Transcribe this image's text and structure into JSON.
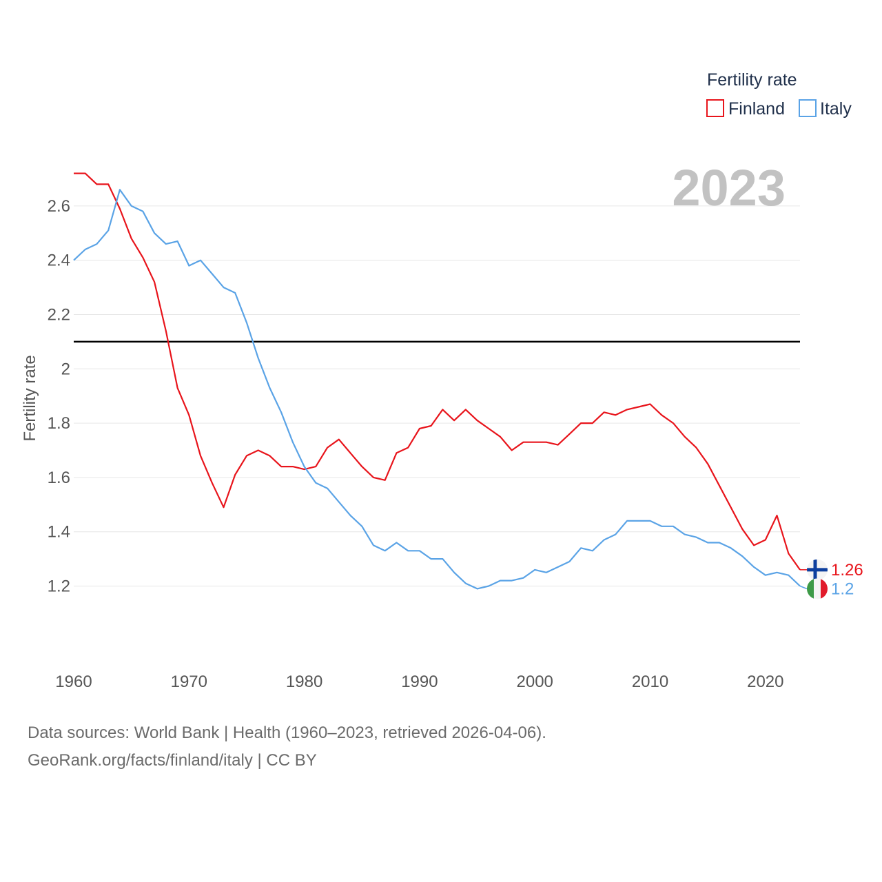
{
  "chart_data": {
    "type": "line",
    "title": "Fertility rate",
    "current_year": "2023",
    "xlabel": "",
    "ylabel": "Fertility rate",
    "xlim": [
      1960,
      2023
    ],
    "ylim": [
      0.95,
      2.78
    ],
    "x_ticks": [
      1960,
      1970,
      1980,
      1990,
      2000,
      2010,
      2020
    ],
    "y_ticks": [
      1.2,
      1.4,
      1.6,
      1.8,
      2,
      2.2,
      2.4,
      2.6
    ],
    "reference_line": {
      "y": 2.1,
      "color": "#000000"
    },
    "x": [
      1960,
      1961,
      1962,
      1963,
      1964,
      1965,
      1966,
      1967,
      1968,
      1969,
      1970,
      1971,
      1972,
      1973,
      1974,
      1975,
      1976,
      1977,
      1978,
      1979,
      1980,
      1981,
      1982,
      1983,
      1984,
      1985,
      1986,
      1987,
      1988,
      1989,
      1990,
      1991,
      1992,
      1993,
      1994,
      1995,
      1996,
      1997,
      1998,
      1999,
      2000,
      2001,
      2002,
      2003,
      2004,
      2005,
      2006,
      2007,
      2008,
      2009,
      2010,
      2011,
      2012,
      2013,
      2014,
      2015,
      2016,
      2017,
      2018,
      2019,
      2020,
      2021,
      2022,
      2023
    ],
    "series": [
      {
        "name": "Finland",
        "color": "#e8141b",
        "end_label": "1.26",
        "flag": "finland-flag",
        "values": [
          2.72,
          2.72,
          2.68,
          2.68,
          2.59,
          2.48,
          2.41,
          2.32,
          2.14,
          1.93,
          1.83,
          1.68,
          1.58,
          1.49,
          1.61,
          1.68,
          1.7,
          1.68,
          1.64,
          1.64,
          1.63,
          1.64,
          1.71,
          1.74,
          1.69,
          1.64,
          1.6,
          1.59,
          1.69,
          1.71,
          1.78,
          1.79,
          1.85,
          1.81,
          1.85,
          1.81,
          1.78,
          1.75,
          1.7,
          1.73,
          1.73,
          1.73,
          1.72,
          1.76,
          1.8,
          1.8,
          1.84,
          1.83,
          1.85,
          1.86,
          1.87,
          1.83,
          1.8,
          1.75,
          1.71,
          1.65,
          1.57,
          1.49,
          1.41,
          1.35,
          1.37,
          1.46,
          1.32,
          1.26
        ]
      },
      {
        "name": "Italy",
        "color": "#5aa3e6",
        "end_label": "1.2",
        "flag": "italy-flag",
        "values": [
          2.4,
          2.44,
          2.46,
          2.51,
          2.66,
          2.6,
          2.58,
          2.5,
          2.46,
          2.47,
          2.38,
          2.4,
          2.35,
          2.3,
          2.28,
          2.17,
          2.04,
          1.93,
          1.84,
          1.73,
          1.64,
          1.58,
          1.56,
          1.51,
          1.46,
          1.42,
          1.35,
          1.33,
          1.36,
          1.33,
          1.33,
          1.3,
          1.3,
          1.25,
          1.21,
          1.19,
          1.2,
          1.22,
          1.22,
          1.23,
          1.26,
          1.25,
          1.27,
          1.29,
          1.34,
          1.33,
          1.37,
          1.39,
          1.44,
          1.44,
          1.44,
          1.42,
          1.42,
          1.39,
          1.38,
          1.36,
          1.36,
          1.34,
          1.31,
          1.27,
          1.24,
          1.25,
          1.24,
          1.2
        ]
      }
    ]
  },
  "legend": {
    "title": "Fertility rate",
    "items": [
      "Finland",
      "Italy"
    ]
  },
  "footer": {
    "line1": "Data sources: World Bank | Health (1960–2023, retrieved 2026-04-06).",
    "line2": "GeoRank.org/facts/finland/italy | CC BY"
  }
}
